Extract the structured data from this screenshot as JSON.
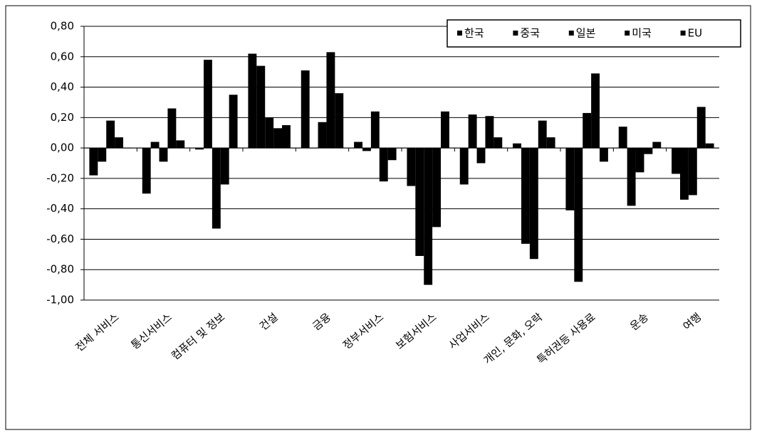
{
  "chart_data": {
    "type": "bar",
    "categories": [
      "전체 서비스",
      "통신서비스",
      "컴퓨터 및 정보",
      "건설",
      "금융",
      "정부서비스",
      "보험서비스",
      "사업서비스",
      "개인, 문화, 오락",
      "특허권등 사용료",
      "운송",
      "여행"
    ],
    "series": [
      {
        "name": "한국",
        "color": "#000000",
        "values": [
          -0.18,
          -0.3,
          -0.01,
          0.62,
          0.51,
          0.04,
          -0.25,
          -0.24,
          0.03,
          -0.41,
          0.14,
          -0.17
        ]
      },
      {
        "name": "중국",
        "color": "#000000",
        "values": [
          -0.09,
          0.04,
          0.58,
          0.54,
          0.0,
          -0.02,
          -0.71,
          0.22,
          -0.63,
          -0.88,
          -0.38,
          -0.34
        ]
      },
      {
        "name": "일본",
        "color": "#000000",
        "values": [
          0.18,
          -0.09,
          -0.53,
          0.2,
          0.17,
          0.24,
          -0.9,
          -0.1,
          -0.73,
          0.23,
          -0.16,
          -0.31
        ]
      },
      {
        "name": "미국",
        "color": "#000000",
        "values": [
          0.07,
          0.26,
          -0.24,
          0.13,
          0.63,
          -0.22,
          -0.52,
          0.21,
          0.18,
          0.49,
          -0.04,
          0.27
        ]
      },
      {
        "name": "EU",
        "color": "#000000",
        "values": [
          0.0,
          0.05,
          0.35,
          0.15,
          0.36,
          -0.08,
          0.24,
          0.07,
          0.07,
          -0.09,
          0.04,
          0.03
        ]
      }
    ],
    "ylim": [
      -1.0,
      0.8
    ],
    "yticks": [
      {
        "value": -1.0,
        "label": "-1,00"
      },
      {
        "value": -0.8,
        "label": "-0,80"
      },
      {
        "value": -0.6,
        "label": "-0,60"
      },
      {
        "value": -0.4,
        "label": "-0,40"
      },
      {
        "value": -0.2,
        "label": "-0,20"
      },
      {
        "value": 0,
        "label": "0,00"
      },
      {
        "value": 0.2,
        "label": "0,20"
      },
      {
        "value": 0.4,
        "label": "0,40"
      },
      {
        "value": 0.6,
        "label": "0,60"
      },
      {
        "value": 0.8,
        "label": "0,80"
      }
    ],
    "grid": true,
    "legend": "top-right"
  }
}
